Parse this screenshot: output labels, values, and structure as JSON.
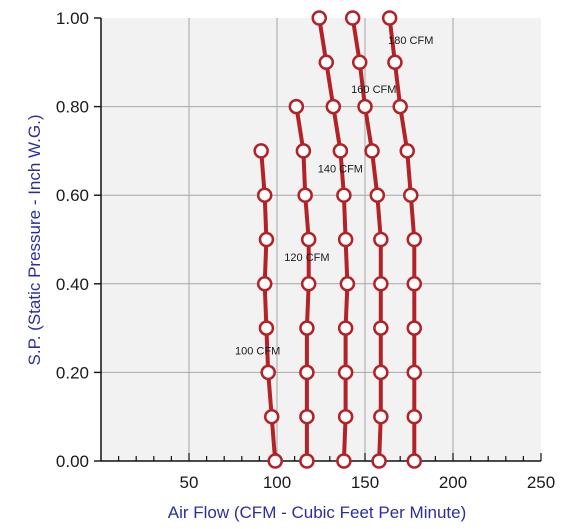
{
  "chart_data": {
    "type": "line",
    "xlabel": "Air Flow (CFM - Cubic Feet Per Minute)",
    "ylabel": "S.P. (Static Pressure - Inch W.G.)",
    "xlim": [
      0,
      250
    ],
    "ylim": [
      0,
      1.0
    ],
    "x_ticks": [
      {
        "value": 50,
        "label": "50"
      },
      {
        "value": 100,
        "label": "100"
      },
      {
        "value": 150,
        "label": "150"
      },
      {
        "value": 200,
        "label": "200"
      },
      {
        "value": 250,
        "label": "250"
      }
    ],
    "y_ticks": [
      {
        "value": 0.0,
        "label": "0.00"
      },
      {
        "value": 0.2,
        "label": "0.20"
      },
      {
        "value": 0.4,
        "label": "0.40"
      },
      {
        "value": 0.6,
        "label": "0.60"
      },
      {
        "value": 0.8,
        "label": "0.80"
      },
      {
        "value": 1.0,
        "label": "1.00"
      }
    ],
    "grid": true,
    "grid_x_step": 50,
    "grid_y_step": 0.2,
    "minor_x_step": 10,
    "line_color": "#b22227",
    "background": "#f2f2f2",
    "series": [
      {
        "name": "100 CFM",
        "label_at": [
          89,
          0.25
        ],
        "points": [
          [
            99,
            0.0
          ],
          [
            97,
            0.1
          ],
          [
            95,
            0.2
          ],
          [
            94,
            0.3
          ],
          [
            93,
            0.4
          ],
          [
            94,
            0.5
          ],
          [
            93,
            0.6
          ],
          [
            91,
            0.7
          ]
        ]
      },
      {
        "name": "120 CFM",
        "label_at": [
          117,
          0.46
        ],
        "points": [
          [
            117,
            0.0
          ],
          [
            117,
            0.1
          ],
          [
            117,
            0.2
          ],
          [
            117,
            0.3
          ],
          [
            118,
            0.4
          ],
          [
            118,
            0.5
          ],
          [
            116,
            0.6
          ],
          [
            115,
            0.7
          ],
          [
            111,
            0.8
          ]
        ]
      },
      {
        "name": "140 CFM",
        "label_at": [
          136,
          0.66
        ],
        "points": [
          [
            138,
            0.0
          ],
          [
            139,
            0.1
          ],
          [
            139,
            0.2
          ],
          [
            139,
            0.3
          ],
          [
            140,
            0.4
          ],
          [
            139,
            0.5
          ],
          [
            138,
            0.6
          ],
          [
            136,
            0.7
          ],
          [
            132,
            0.8
          ],
          [
            128,
            0.9
          ],
          [
            124,
            1.0
          ]
        ]
      },
      {
        "name": "160 CFM",
        "label_at": [
          155,
          0.84
        ],
        "points": [
          [
            158,
            0.0
          ],
          [
            159,
            0.1
          ],
          [
            159,
            0.2
          ],
          [
            159,
            0.3
          ],
          [
            159,
            0.4
          ],
          [
            159,
            0.5
          ],
          [
            157,
            0.6
          ],
          [
            154,
            0.7
          ],
          [
            150,
            0.8
          ],
          [
            147,
            0.9
          ],
          [
            143,
            1.0
          ]
        ]
      },
      {
        "name": "180 CFM",
        "label_at": [
          176,
          0.95
        ],
        "points": [
          [
            178,
            0.0
          ],
          [
            178,
            0.1
          ],
          [
            178,
            0.2
          ],
          [
            178,
            0.3
          ],
          [
            178,
            0.4
          ],
          [
            178,
            0.5
          ],
          [
            176,
            0.6
          ],
          [
            174,
            0.7
          ],
          [
            170,
            0.8
          ],
          [
            167,
            0.9
          ],
          [
            164,
            1.0
          ]
        ]
      }
    ]
  }
}
